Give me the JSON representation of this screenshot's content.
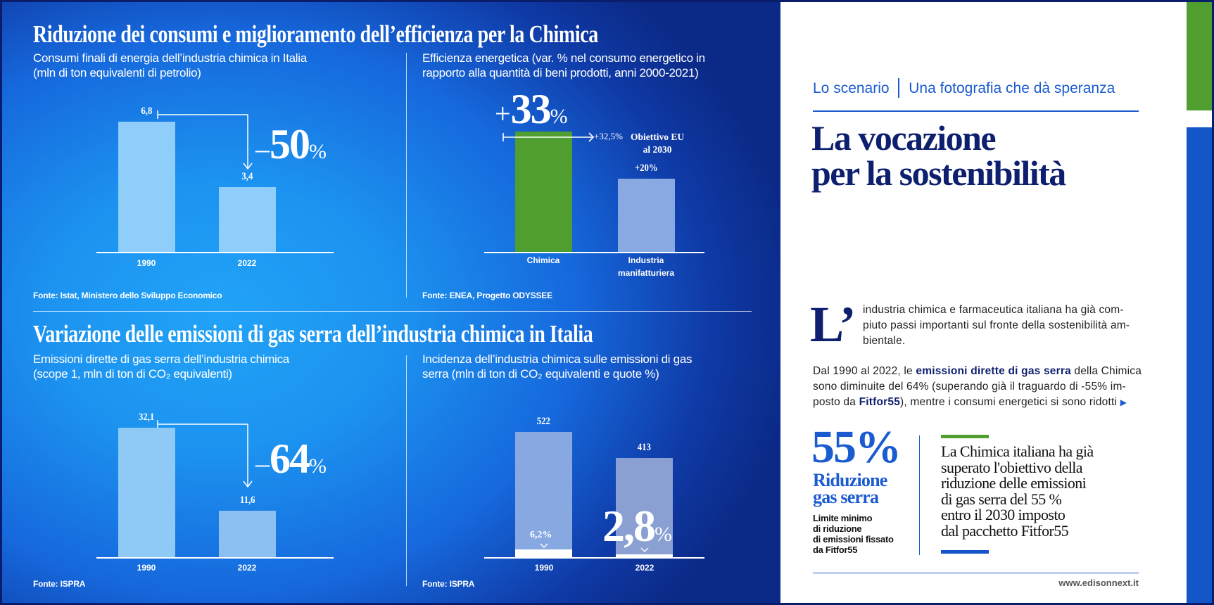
{
  "section1": {
    "title": "Riduzione dei consumi e miglioramento dell’efficienza per la Chimica",
    "left_subtitle": [
      "Consumi finali di energia dell’industria chimica in Italia",
      "(mln di ton equivalenti di petrolio)"
    ],
    "left_change": {
      "sign": "–",
      "value": "50",
      "unit": "%"
    },
    "left_source": "Fonte: Istat, Ministero dello Sviluppo Economico",
    "right_subtitle": [
      "Efficienza energetica (var. % nel consumo energetico in",
      "rapporto alla quantità di beni prodotti, anni 2000-2021)"
    ],
    "right_highlight": {
      "sign": "+",
      "value": "33",
      "unit": "%"
    },
    "target_value": "+32,5%",
    "target_label": [
      "Obiettivo EU",
      "al 2030"
    ],
    "right_source": "Fonte: ENEA, Progetto ODYSSEE"
  },
  "section2": {
    "title": "Variazione delle emissioni di gas serra dell’industria chimica in Italia",
    "left_subtitle": [
      "Emissioni dirette di gas serra dell’industria chimica",
      "(scope 1, mln di ton di CO₂ equivalenti)"
    ],
    "left_change": {
      "sign": "–",
      "value": "64",
      "unit": "%"
    },
    "left_source": "Fonte: ISPRA",
    "right_subtitle": [
      "Incidenza dell’industria chimica sulle emissioni di gas",
      "serra (mln di ton di CO₂ equivalenti e quote %)"
    ],
    "share_big": {
      "value": "2,8",
      "unit": "%"
    },
    "right_source": "Fonte: ISPRA"
  },
  "chart_data": [
    {
      "type": "bar",
      "title": "Consumi finali di energia dell’industria chimica in Italia",
      "ylabel": "mln di ton equivalenti di petrolio",
      "categories": [
        "1990",
        "2022"
      ],
      "values": [
        6.8,
        3.4
      ],
      "labels": [
        "6,8",
        "3,4"
      ],
      "ylim": [
        0,
        6.8
      ]
    },
    {
      "type": "bar",
      "title": "Efficienza energetica",
      "ylabel": "var. % consumo energetico",
      "categories": [
        "Chimica",
        "Industria manifatturiera"
      ],
      "category_lines": [
        [
          "Chimica"
        ],
        [
          "Industria",
          "manifatturiera"
        ]
      ],
      "values": [
        33,
        20
      ],
      "labels": [
        "+33%",
        "+20%"
      ],
      "target": 32.5,
      "ylim": [
        0,
        33
      ]
    },
    {
      "type": "bar",
      "title": "Emissioni dirette di gas serra dell’industria chimica",
      "ylabel": "mln di ton di CO₂ equivalenti",
      "categories": [
        "1990",
        "2022"
      ],
      "values": [
        32.1,
        11.6
      ],
      "labels": [
        "32,1",
        "11,6"
      ],
      "ylim": [
        0,
        32.1
      ]
    },
    {
      "type": "bar",
      "title": "Incidenza dell’industria chimica sulle emissioni di gas serra",
      "ylabel": "mln di ton di CO₂ equivalenti",
      "categories": [
        "1990",
        "2022"
      ],
      "values": [
        522,
        413
      ],
      "labels": [
        "522",
        "413"
      ],
      "share_pct": [
        6.2,
        2.8
      ],
      "share_labels": [
        "6,2%",
        "2,8%"
      ],
      "ylim": [
        0,
        522
      ]
    }
  ],
  "colors": {
    "bar_light": "#8fcdfa",
    "green": "#4f9e2f",
    "periwinkle": "#88a9e2",
    "navy": "#0d1f6e",
    "accent_blue": "#1a5bd0"
  },
  "article": {
    "kicker_section": "Lo scenario",
    "kicker_title": "Una fotografia che dà speranza",
    "headline": [
      "La vocazione",
      "per la sostenibilità"
    ],
    "dropcap": "L’",
    "intro_lines": [
      "industria chimica e farmaceutica italiana ha già com-",
      "piuto passi importanti sul fronte della sostenibilità am-",
      "bientale."
    ],
    "p2_l1_a": "Dal 1990 al 2022, le ",
    "p2_l1_b": "emissioni dirette di gas serra",
    "p2_l1_c": " della Chimica",
    "p2_l2": "sono diminuite del 64% (superando già il traguardo di -55% im-",
    "p2_l3_a": "posto da ",
    "p2_l3_b": "Fitfor55",
    "p2_l3_c": "), mentre i consumi energetici si sono ridotti",
    "stat_value": "55%",
    "stat_title": [
      "Riduzione",
      "gas serra"
    ],
    "stat_desc": [
      "Limite minimo",
      "di riduzione",
      "di emissioni fissato",
      "da Fitfor55"
    ],
    "quote": [
      "La Chimica italiana ha già",
      "superato l'obiettivo della",
      "riduzione delle emissioni",
      "di gas serra del 55 %",
      "entro il 2030 imposto",
      "dal pacchetto Fitfor55"
    ],
    "website": "www.edisonnext.it"
  }
}
